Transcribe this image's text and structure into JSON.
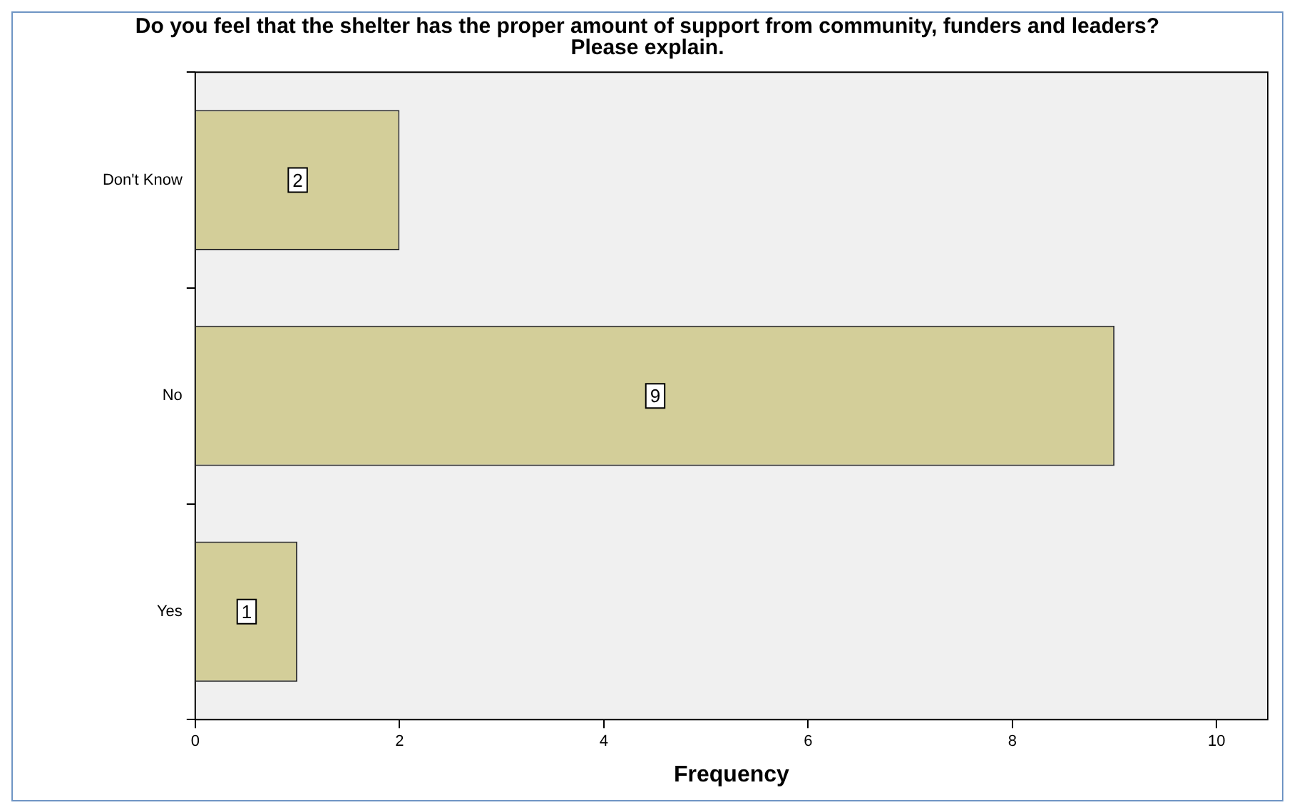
{
  "chart_data": {
    "type": "bar",
    "orientation": "horizontal",
    "title": "Do you feel that the shelter has the proper amount of support from community, funders and leaders?  Please explain.",
    "xlabel": "Frequency",
    "categories": [
      "Don't Know",
      "No",
      "Yes"
    ],
    "values": [
      2,
      9,
      1
    ],
    "color": "#d3ce99",
    "xlim": [
      0,
      10.5
    ],
    "xticks": [
      0,
      2,
      4,
      6,
      8,
      10
    ],
    "grid": false,
    "legend": false,
    "data_labels": true
  }
}
